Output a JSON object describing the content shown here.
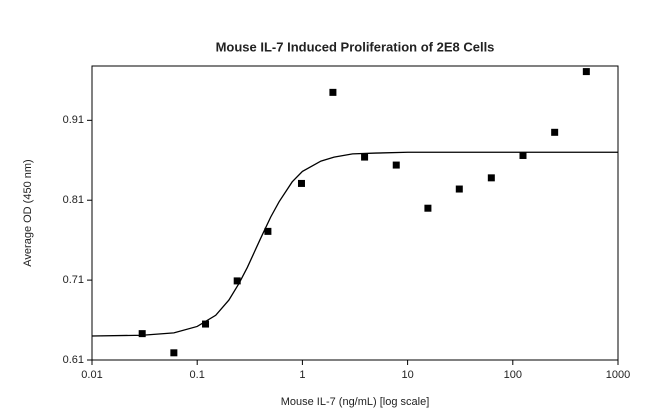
{
  "chart_data": {
    "type": "scatter",
    "title": "Mouse IL-7 Induced Proliferation of 2E8 Cells",
    "x_label": "Mouse IL-7 (ng/mL) [log scale]",
    "y_label": "Average OD (450 nm)",
    "x_scale": "log",
    "x": [
      0.03,
      0.06,
      0.12,
      0.24,
      0.47,
      0.98,
      1.95,
      3.9,
      7.8,
      15.6,
      31,
      62.5,
      125,
      250,
      500
    ],
    "values": [
      0.643,
      0.619,
      0.655,
      0.709,
      0.771,
      0.831,
      0.945,
      0.864,
      0.854,
      0.8,
      0.824,
      0.838,
      0.866,
      0.895,
      0.971
    ],
    "color": "#000000",
    "curve": {
      "color": "#000000",
      "x": [
        0.01,
        0.03,
        0.06,
        0.1,
        0.15,
        0.2,
        0.25,
        0.3,
        0.4,
        0.5,
        0.6,
        0.8,
        1,
        1.5,
        2,
        3,
        5,
        10,
        100,
        1000
      ],
      "values": [
        0.64,
        0.641,
        0.644,
        0.652,
        0.666,
        0.685,
        0.706,
        0.726,
        0.762,
        0.789,
        0.808,
        0.833,
        0.846,
        0.859,
        0.864,
        0.868,
        0.869,
        0.87,
        0.87,
        0.87
      ]
    },
    "xlim": [
      0.01,
      1000
    ],
    "xticks": [
      0.01,
      0.1,
      1,
      10,
      100,
      1000
    ],
    "ylim": [
      0.61,
      0.978
    ],
    "yticks": [
      0.61,
      0.71,
      0.81,
      0.91
    ]
  }
}
